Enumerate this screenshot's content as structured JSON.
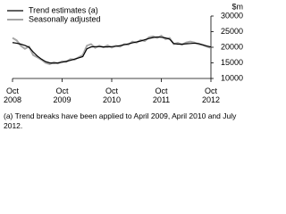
{
  "chart_data": {
    "type": "line",
    "y_label": "$m",
    "footnote": "(a) Trend breaks have been applied to April 2009, April 2010 and July 2012.",
    "categories": [
      "Oct 2008",
      null,
      null,
      null,
      null,
      null,
      null,
      null,
      null,
      null,
      null,
      null,
      "Oct 2009",
      null,
      null,
      null,
      null,
      null,
      null,
      null,
      null,
      null,
      null,
      null,
      "Oct 2010",
      null,
      null,
      null,
      null,
      null,
      null,
      null,
      null,
      null,
      null,
      null,
      "Oct 2011",
      null,
      null,
      null,
      null,
      null,
      null,
      null,
      null,
      null,
      null,
      null,
      "Oct 2012"
    ],
    "series": [
      {
        "name": "Trend estimates (a)",
        "color": "#000000",
        "values": [
          21500,
          21300,
          21000,
          20600,
          20000,
          18500,
          17200,
          16200,
          15400,
          15000,
          14900,
          15000,
          15200,
          15500,
          15800,
          16200,
          16600,
          17000,
          19500,
          20100,
          20200,
          20200,
          20100,
          20100,
          20200,
          20300,
          20500,
          20800,
          21100,
          21400,
          21700,
          22000,
          22400,
          22800,
          23100,
          23300,
          23200,
          23000,
          22600,
          21200,
          21000,
          21000,
          21100,
          21200,
          21300,
          21200,
          20800,
          20400,
          20100
        ]
      },
      {
        "name": "Seasonally adjusted",
        "color": "#a6a6a6",
        "values": [
          23000,
          22200,
          20500,
          19500,
          20200,
          17500,
          16800,
          16000,
          15000,
          14600,
          15200,
          14800,
          15500,
          15300,
          16200,
          16000,
          16800,
          17500,
          20500,
          21000,
          19800,
          20500,
          20000,
          20600,
          19900,
          20500,
          20200,
          21000,
          20800,
          21800,
          21500,
          22300,
          22000,
          23200,
          23500,
          23000,
          23700,
          22600,
          23000,
          21000,
          21400,
          20800,
          21500,
          21800,
          21500,
          21000,
          20700,
          20200,
          19800
        ]
      }
    ],
    "ylim": [
      10000,
      30000
    ],
    "yticks": [
      10000,
      15000,
      20000,
      25000,
      30000
    ]
  }
}
